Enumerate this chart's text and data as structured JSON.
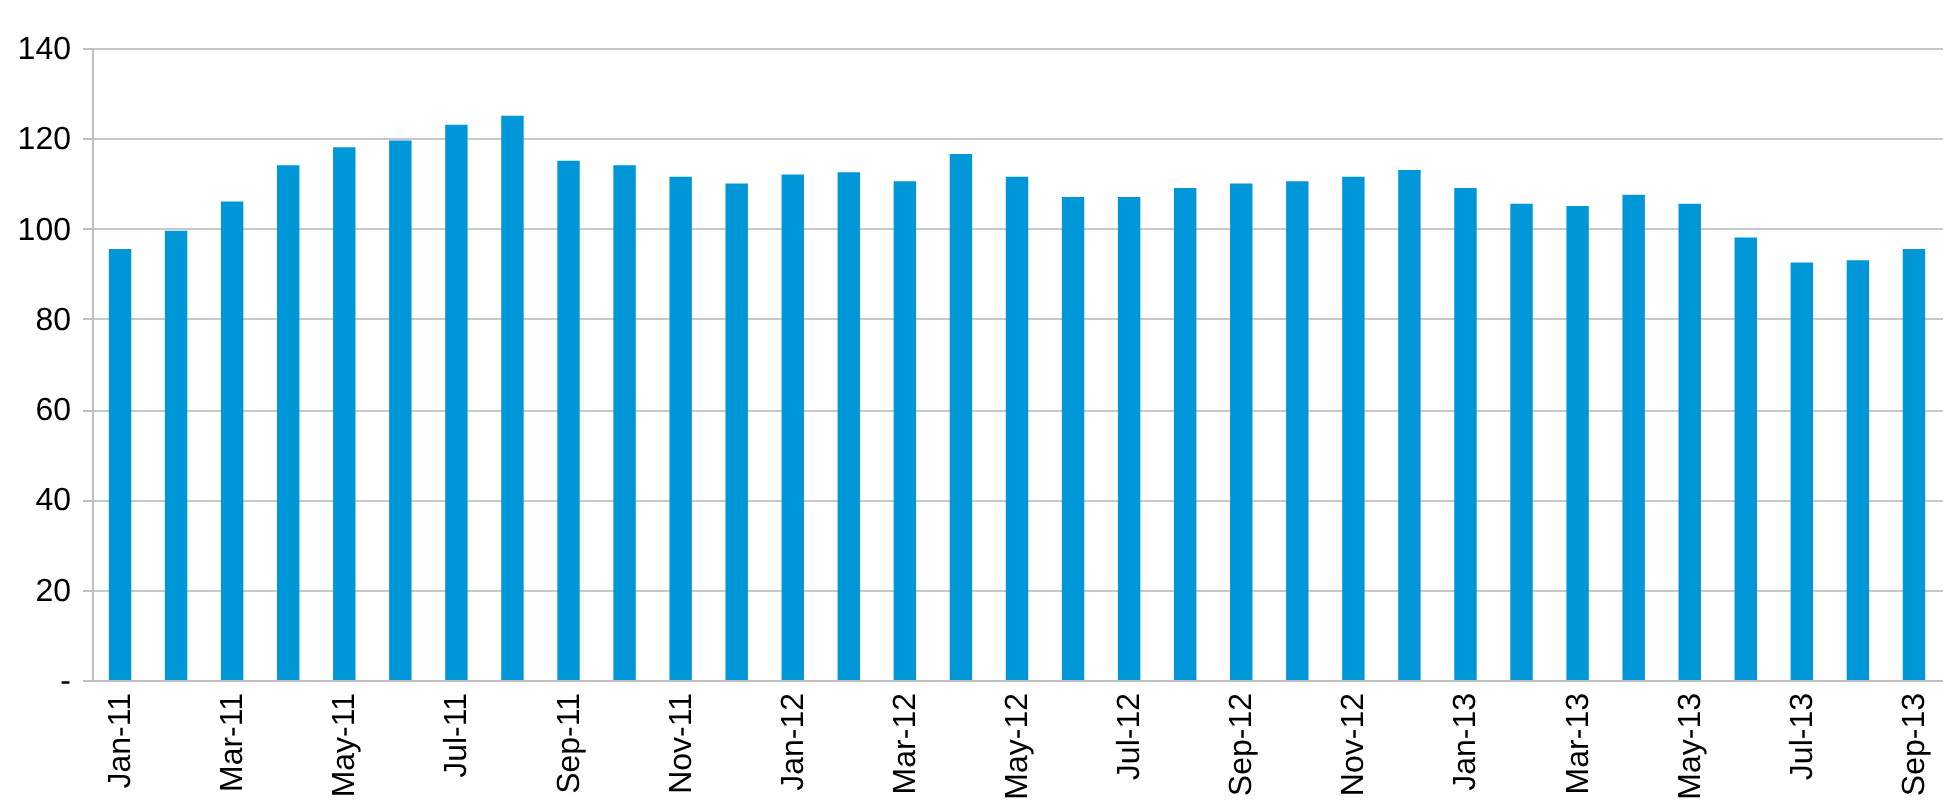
{
  "chart_data": {
    "type": "bar",
    "categories": [
      "Jan-11",
      null,
      "Mar-11",
      null,
      "May-11",
      null,
      "Jul-11",
      null,
      "Sep-11",
      null,
      "Nov-11",
      null,
      "Jan-12",
      null,
      "Mar-12",
      null,
      "May-12",
      null,
      "Jul-12",
      null,
      "Sep-12",
      null,
      "Nov-12",
      null,
      "Jan-13",
      null,
      "Mar-13",
      null,
      "May-13",
      null,
      "Jul-13",
      null,
      "Sep-13"
    ],
    "values": [
      95.5,
      99.5,
      106,
      114,
      118,
      119.5,
      123,
      125,
      115,
      114,
      111.5,
      110,
      112,
      112.5,
      110.5,
      116.5,
      111.5,
      107,
      107,
      109,
      110,
      110.5,
      111.5,
      113,
      109,
      105.5,
      105,
      107.5,
      105.5,
      98,
      92.5,
      93,
      95.5
    ],
    "color": "#0097d9",
    "ylim": [
      0,
      140
    ],
    "yticks": [
      {
        "value": 0,
        "label": "-"
      },
      20,
      40,
      60,
      80,
      100,
      120,
      140
    ],
    "grid": "y"
  }
}
